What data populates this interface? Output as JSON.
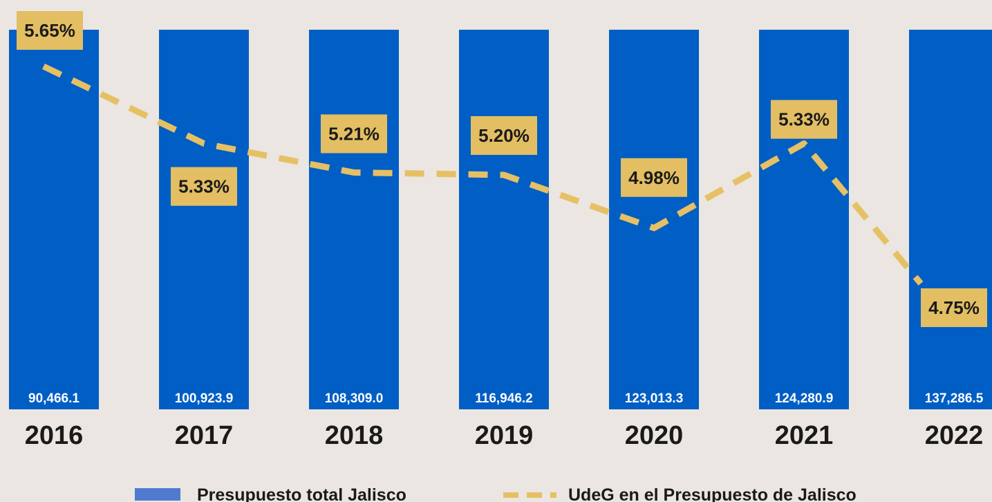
{
  "chart_data": {
    "type": "bar",
    "categories": [
      "2016",
      "2017",
      "2018",
      "2019",
      "2020",
      "2021",
      "2022"
    ],
    "series": [
      {
        "name": "Presupuesto total Jalisco",
        "type": "bar",
        "color": "#005ec4",
        "values": [
          90466.1,
          100923.9,
          108309.0,
          116946.2,
          123013.3,
          124280.9,
          137286.5
        ],
        "labels": [
          "90,466.1",
          "100,923.9",
          "108,309.0",
          "116,946.2",
          "123,013.3",
          "124,280.9",
          "137,286.5"
        ]
      },
      {
        "name": "UdeG en el Presupuesto de Jalisco",
        "type": "line",
        "style": "dashed",
        "color": "#e6c064",
        "values": [
          5.65,
          5.33,
          5.21,
          5.2,
          4.98,
          5.33,
          4.75
        ],
        "labels": [
          "5.65%",
          "5.33%",
          "5.21%",
          "5.20%",
          "4.98%",
          "5.33%",
          "4.75%"
        ]
      }
    ],
    "legend": "bottom"
  }
}
